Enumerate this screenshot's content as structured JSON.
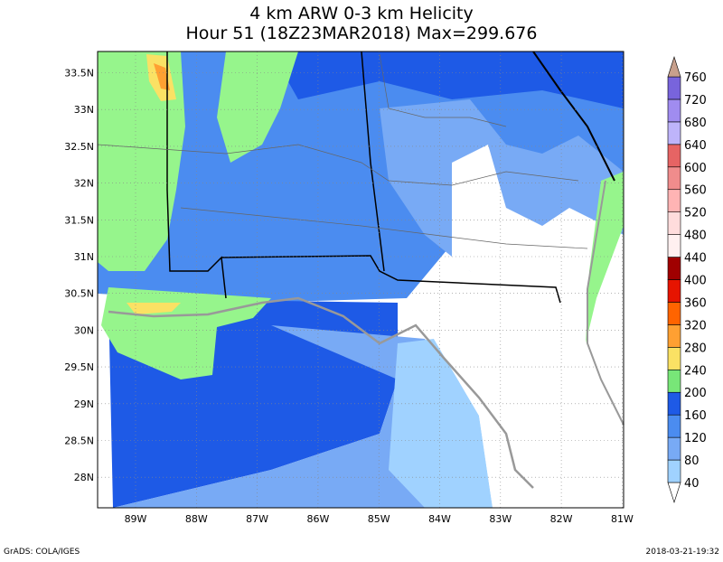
{
  "title": [
    "4 km ARW 0-3 km Helicity",
    "Hour 51 (18Z23MAR2018) Max=299.676"
  ],
  "lat_labels": [
    "33.5N",
    "33N",
    "32.5N",
    "32N",
    "31.5N",
    "31N",
    "30.5N",
    "30N",
    "29.5N",
    "29N",
    "28.5N",
    "28N"
  ],
  "lon_labels": [
    "89W",
    "88W",
    "87W",
    "86W",
    "85W",
    "84W",
    "83W",
    "82W",
    "81W"
  ],
  "colorbar": {
    "levels": [
      40,
      80,
      120,
      160,
      200,
      240,
      280,
      320,
      360,
      400,
      440,
      480,
      520,
      560,
      600,
      640,
      680,
      720,
      760
    ],
    "colors": [
      "#ffffff",
      "#a0d2ff",
      "#78aaf5",
      "#4b8cf0",
      "#1e5ae6",
      "#78e678",
      "#fae164",
      "#ffa032",
      "#ff6400",
      "#e61400",
      "#a00000",
      "#fff0f0",
      "#ffdcdc",
      "#ffb4b4",
      "#f08c8c",
      "#e66464",
      "#beb4fa",
      "#a08cf0",
      "#7864dc",
      "#c8a08c"
    ]
  },
  "footer": {
    "left": "GrADS: COLA/IGES",
    "right": "2018-03-21-19:32"
  }
}
